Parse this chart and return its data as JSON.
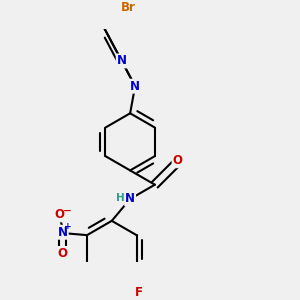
{
  "background_color": "#f0f0f0",
  "bond_color": "#000000",
  "bond_width": 1.5,
  "atom_colors": {
    "N": "#0000cc",
    "O": "#cc0000",
    "F": "#cc0000",
    "Br": "#cc6600",
    "H": "#2a9d8f",
    "C": "#000000"
  },
  "font_size": 8.5,
  "fig_width": 3.0,
  "fig_height": 3.0,
  "dpi": 100
}
